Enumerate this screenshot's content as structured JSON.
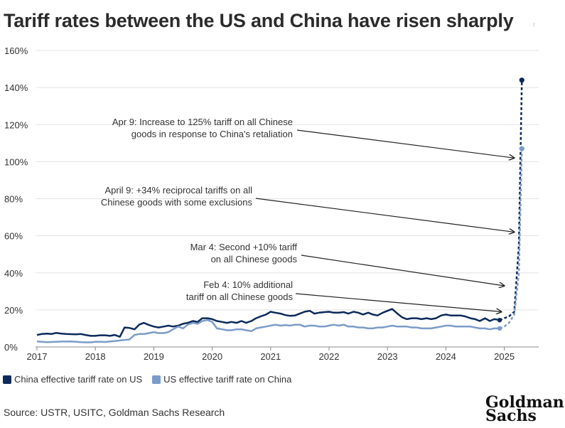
{
  "title": "Tariff rates between the US and China have risen sharply",
  "title_suffix": "r",
  "legend": [
    {
      "label": "China effective tariff rate on US",
      "color": "#0b2a5a"
    },
    {
      "label": "US effective tariff rate on China",
      "color": "#7b9cc8"
    }
  ],
  "source": "Source: USTR, USITC, Goldman Sachs Research",
  "logo": {
    "line1": "Goldman",
    "line2": "Sachs"
  },
  "annotations": [
    {
      "lines": [
        "Apr 9: Increase to 125% tariff on all Chinese",
        "goods in response to China's retaliation"
      ],
      "target": [
        2025.17,
        102
      ]
    },
    {
      "lines": [
        "April 9: +34% reciprocal tariffs on all",
        "Chinese goods with some exclusions"
      ],
      "target": [
        2025.17,
        62
      ]
    },
    {
      "lines": [
        "Mar 4: Second +10% tariff",
        "on all Chinese goods"
      ],
      "target": [
        2025.0,
        33
      ]
    },
    {
      "lines": [
        "Feb 4: 10% additional",
        "tariff on all Chinese goods"
      ],
      "target": [
        2024.95,
        19
      ]
    }
  ],
  "chart_data": {
    "type": "line",
    "title": "Tariff rates between the US and China have risen sharply",
    "xlim": [
      2017,
      2025.55
    ],
    "ylim": [
      0,
      160
    ],
    "x_ticks": [
      "2017",
      "2018",
      "2019",
      "2020",
      "2021",
      "2022",
      "2023",
      "2024",
      "2025"
    ],
    "y_ticks": [
      "0%",
      "20%",
      "40%",
      "60%",
      "80%",
      "100%",
      "120%",
      "140%",
      "160%"
    ],
    "grid": "horizontal",
    "legend_position": "bottom-left",
    "series": [
      {
        "name": "China effective tariff rate on US",
        "color": "#0b2a5a",
        "x": [
          2017.0,
          2017.08,
          2017.17,
          2017.25,
          2017.33,
          2017.42,
          2017.5,
          2017.58,
          2017.67,
          2017.75,
          2017.83,
          2017.92,
          2018.0,
          2018.08,
          2018.17,
          2018.25,
          2018.33,
          2018.42,
          2018.5,
          2018.58,
          2018.67,
          2018.75,
          2018.83,
          2018.92,
          2019.0,
          2019.08,
          2019.17,
          2019.25,
          2019.33,
          2019.42,
          2019.5,
          2019.58,
          2019.67,
          2019.75,
          2019.83,
          2019.92,
          2020.0,
          2020.08,
          2020.17,
          2020.25,
          2020.33,
          2020.42,
          2020.5,
          2020.58,
          2020.67,
          2020.75,
          2020.83,
          2020.92,
          2021.0,
          2021.08,
          2021.17,
          2021.25,
          2021.33,
          2021.42,
          2021.5,
          2021.58,
          2021.67,
          2021.75,
          2021.83,
          2021.92,
          2022.0,
          2022.08,
          2022.17,
          2022.25,
          2022.33,
          2022.42,
          2022.5,
          2022.58,
          2022.67,
          2022.75,
          2022.83,
          2022.92,
          2023.0,
          2023.08,
          2023.17,
          2023.25,
          2023.33,
          2023.42,
          2023.5,
          2023.58,
          2023.67,
          2023.75,
          2023.83,
          2023.92,
          2024.0,
          2024.08,
          2024.17,
          2024.25,
          2024.33,
          2024.42,
          2024.5,
          2024.58,
          2024.67,
          2024.75,
          2024.83,
          2024.92
        ],
        "values": [
          6.5,
          7.0,
          7.2,
          7.0,
          7.6,
          7.2,
          7.0,
          6.9,
          6.8,
          7.0,
          6.5,
          6.0,
          6.0,
          6.3,
          6.3,
          6.0,
          6.5,
          5.5,
          10.5,
          10.3,
          9.5,
          12.0,
          13.0,
          11.8,
          11.0,
          10.5,
          11.0,
          11.5,
          11.0,
          11.5,
          12.5,
          13.0,
          14.0,
          13.5,
          15.5,
          15.5,
          15.0,
          14.0,
          13.5,
          13.0,
          13.5,
          13.0,
          14.0,
          13.0,
          14.0,
          15.5,
          16.5,
          17.5,
          19.0,
          18.5,
          18.0,
          17.2,
          16.8,
          17.0,
          18.0,
          19.0,
          19.5,
          18.0,
          18.5,
          18.8,
          19.0,
          18.5,
          18.5,
          18.8,
          18.0,
          19.0,
          18.5,
          17.5,
          18.5,
          17.5,
          17.0,
          18.5,
          19.5,
          20.5,
          18.0,
          16.0,
          15.0,
          15.5,
          15.5,
          15.0,
          15.5,
          15.0,
          15.5,
          17.0,
          17.5,
          17.0,
          17.0,
          17.0,
          16.5,
          15.5,
          15.0,
          14.0,
          15.5,
          14.0,
          15.0,
          14.5
        ]
      },
      {
        "name": "China effective tariff rate on US (projected)",
        "color": "#0b2a5a",
        "dashed": true,
        "x": [
          2024.92,
          2025.0,
          2025.08,
          2025.17,
          2025.25,
          2025.3
        ],
        "values": [
          14.5,
          15.5,
          16.5,
          19.0,
          55.0,
          144.0
        ]
      },
      {
        "name": "US effective tariff rate on China",
        "color": "#7b9cc8",
        "x": [
          2017.0,
          2017.08,
          2017.17,
          2017.25,
          2017.33,
          2017.42,
          2017.5,
          2017.58,
          2017.67,
          2017.75,
          2017.83,
          2017.92,
          2018.0,
          2018.08,
          2018.17,
          2018.25,
          2018.33,
          2018.42,
          2018.5,
          2018.58,
          2018.67,
          2018.75,
          2018.83,
          2018.92,
          2019.0,
          2019.08,
          2019.17,
          2019.25,
          2019.33,
          2019.42,
          2019.5,
          2019.58,
          2019.67,
          2019.75,
          2019.83,
          2019.92,
          2020.0,
          2020.08,
          2020.17,
          2020.25,
          2020.33,
          2020.42,
          2020.5,
          2020.58,
          2020.67,
          2020.75,
          2020.83,
          2020.92,
          2021.0,
          2021.08,
          2021.17,
          2021.25,
          2021.33,
          2021.42,
          2021.5,
          2021.58,
          2021.67,
          2021.75,
          2021.83,
          2021.92,
          2022.0,
          2022.08,
          2022.17,
          2022.25,
          2022.33,
          2022.42,
          2022.5,
          2022.58,
          2022.67,
          2022.75,
          2022.83,
          2022.92,
          2023.0,
          2023.08,
          2023.17,
          2023.25,
          2023.33,
          2023.42,
          2023.5,
          2023.58,
          2023.67,
          2023.75,
          2023.83,
          2023.92,
          2024.0,
          2024.08,
          2024.17,
          2024.25,
          2024.33,
          2024.42,
          2024.5,
          2024.58,
          2024.67,
          2024.75,
          2024.83,
          2024.92
        ],
        "values": [
          3.0,
          2.8,
          2.6,
          2.7,
          2.8,
          2.9,
          2.9,
          3.0,
          2.8,
          2.6,
          2.5,
          2.5,
          2.8,
          2.8,
          2.7,
          3.0,
          3.2,
          3.5,
          3.8,
          4.0,
          6.5,
          7.0,
          7.0,
          7.5,
          8.0,
          7.5,
          7.5,
          8.0,
          9.5,
          11.0,
          10.0,
          12.0,
          13.0,
          12.5,
          14.0,
          14.5,
          13.5,
          10.0,
          9.5,
          9.0,
          9.0,
          9.5,
          9.5,
          9.0,
          8.5,
          10.0,
          10.5,
          11.0,
          11.5,
          12.0,
          11.5,
          11.8,
          11.5,
          12.0,
          12.0,
          11.0,
          11.5,
          11.5,
          11.0,
          11.0,
          11.5,
          12.0,
          11.5,
          12.0,
          11.0,
          11.0,
          10.5,
          10.5,
          10.0,
          10.0,
          10.5,
          10.5,
          11.0,
          11.5,
          11.0,
          11.0,
          11.0,
          10.5,
          10.5,
          10.0,
          10.0,
          10.0,
          10.5,
          11.0,
          11.5,
          11.5,
          11.0,
          11.0,
          11.0,
          11.0,
          10.5,
          10.0,
          10.0,
          9.5,
          10.0,
          10.0
        ]
      },
      {
        "name": "US effective tariff rate on China (projected)",
        "color": "#7b9cc8",
        "dashed": true,
        "x": [
          2024.92,
          2025.0,
          2025.08,
          2025.17,
          2025.25,
          2025.3
        ],
        "values": [
          10.0,
          11.0,
          13.0,
          17.5,
          40.0,
          107.0
        ]
      }
    ]
  }
}
